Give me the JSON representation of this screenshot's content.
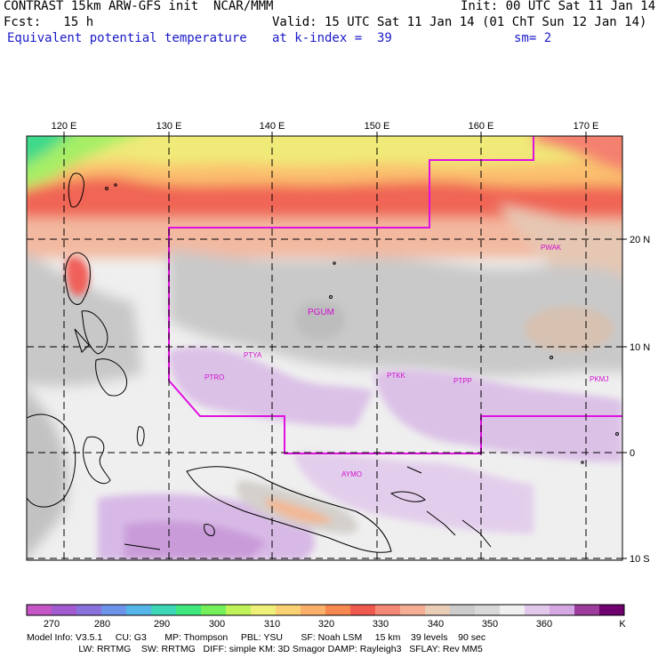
{
  "header": {
    "line1_left": "CONTRAST 15km ARW-GFS init  NCAR/MMM",
    "line1_right": "Init: 00 UTC Sat 11 Jan 14",
    "line2_left": "Fcst:   15 h",
    "line2_right": "Valid: 15 UTC Sat 11 Jan 14 (01 ChT Sun 12 Jan 14)",
    "line3_field": "Equivalent potential temperature",
    "line3_level": "at k-index =  39",
    "line3_sm": "sm= 2"
  },
  "map": {
    "lon_labels": [
      "120 E",
      "130 E",
      "140 E",
      "150 E",
      "160 E",
      "170 E"
    ],
    "lat_labels": [
      "20 N",
      "10 N",
      "0",
      "10 S"
    ],
    "stations": [
      "PWAK",
      "PGUM",
      "PTYA",
      "PTRO",
      "PTKK",
      "PTPP",
      "PKMJ",
      "AYMO"
    ]
  },
  "colorbar": {
    "colors": [
      "#c655c6",
      "#a35cd0",
      "#8a72dc",
      "#6d94ea",
      "#55b5e9",
      "#3dd6b6",
      "#3ee87f",
      "#75ef5a",
      "#c0f25a",
      "#eef07a",
      "#fbd175",
      "#fbb06a",
      "#f7884f",
      "#f0594e",
      "#f48a76",
      "#f5ad95",
      "#e9cdb6",
      "#cccccc",
      "#d9d9d9",
      "#f0f0f0",
      "#e2c8ea",
      "#d5a8e4",
      "#9c3c9c",
      "#700070"
    ],
    "tick_labels": [
      "270",
      "280",
      "290",
      "300",
      "310",
      "320",
      "330",
      "340",
      "350",
      "360",
      "K"
    ]
  },
  "model_info": {
    "line1": "Model Info: V3.5.1     CU: G3       MP: Thompson     PBL: YSU       SF: Noah LSM     15 km    39 levels    90 sec",
    "line2": "                    LW: RRTMG    SW: RRTMG   DIFF: simple KM: 3D Smagor DAMP: Rayleigh3   SFLAY: Rev MM5"
  }
}
